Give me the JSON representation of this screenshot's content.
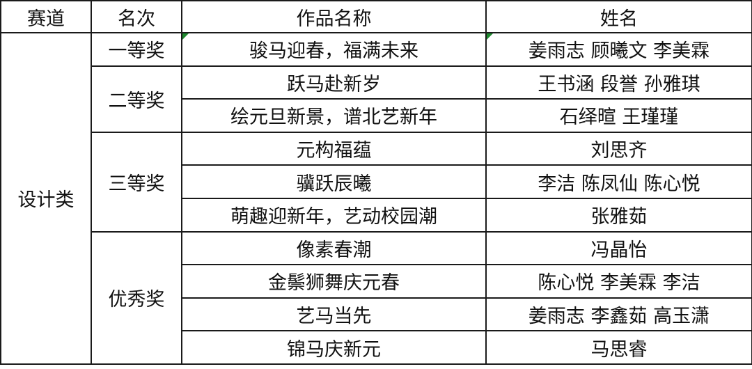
{
  "headers": [
    "赛道",
    "名次",
    "作品名称",
    "姓名"
  ],
  "track": "设计类",
  "ranks": [
    "一等奖",
    "二等奖",
    "三等奖",
    "优秀奖"
  ],
  "rows": [
    {
      "title": "骏马迎春，福满未来",
      "names": "姜雨志 顾曦文 李美霖"
    },
    {
      "title": "跃马赴新岁",
      "names": "王书涵 段誉 孙雅琪"
    },
    {
      "title": "绘元旦新景，谱北艺新年",
      "names": "石绎暄 王瑾瑾"
    },
    {
      "title": "元构福蕴",
      "names": "刘思齐"
    },
    {
      "title": "骥跃辰曦",
      "names": "李洁 陈凤仙 陈心悦"
    },
    {
      "title": "萌趣迎新年，艺动校园潮",
      "names": "张雅茹"
    },
    {
      "title": "像素春潮",
      "names": "冯晶怡"
    },
    {
      "title": "金鬃狮舞庆元春",
      "names": "陈心悦 李美霖 李洁"
    },
    {
      "title": "艺马当先",
      "names": "姜雨志 李鑫茹 高玉潇"
    },
    {
      "title": "锦马庆新元",
      "names": "马思睿"
    }
  ],
  "colors": {
    "border": "#1a1a1a",
    "cell_marker": "#1e8a2e"
  }
}
